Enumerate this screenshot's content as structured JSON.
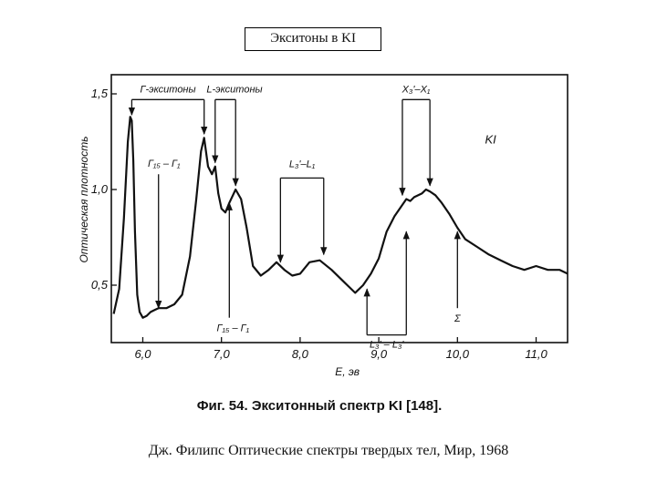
{
  "slide": {
    "title": "Экситоны в KI",
    "source": "Дж. Филипс Оптические спектры твердых тел, Мир, 1968"
  },
  "chart_data": {
    "type": "line",
    "figure_caption": "Фиг. 54. Экситонный спектр KI [148].",
    "xlabel": "E, эв",
    "ylabel": "Оптическая плотность",
    "series_label": "KI",
    "xlim": [
      5.6,
      11.4
    ],
    "ylim": [
      0.2,
      1.6
    ],
    "x_ticks": [
      6.0,
      7.0,
      8.0,
      9.0,
      10.0,
      11.0
    ],
    "x_tick_labels": [
      "6,0",
      "7,0",
      "8,0",
      "9,0",
      "10,0",
      "11,0"
    ],
    "y_ticks": [
      0.5,
      1.0,
      1.5
    ],
    "y_tick_labels": [
      "0,5",
      "1,0",
      "1,5"
    ],
    "series": [
      {
        "x": [
          5.63,
          5.7,
          5.76,
          5.81,
          5.84,
          5.86,
          5.88,
          5.9,
          5.93,
          5.96,
          6.0,
          6.05,
          6.1,
          6.15,
          6.2,
          6.3,
          6.4,
          6.5,
          6.6,
          6.68,
          6.74,
          6.78,
          6.83,
          6.88,
          6.92,
          6.96,
          7.0,
          7.05,
          7.1,
          7.18,
          7.25,
          7.32,
          7.4,
          7.5,
          7.6,
          7.7,
          7.8,
          7.9,
          8.0,
          8.12,
          8.25,
          8.4,
          8.55,
          8.7,
          8.8,
          8.9,
          9.0,
          9.1,
          9.2,
          9.3,
          9.35,
          9.4,
          9.45,
          9.55,
          9.6,
          9.65,
          9.72,
          9.8,
          9.9,
          10.0,
          10.1,
          10.25,
          10.4,
          10.55,
          10.7,
          10.85,
          11.0,
          11.15,
          11.3,
          11.4
        ],
        "y": [
          0.35,
          0.48,
          0.85,
          1.25,
          1.38,
          1.36,
          1.15,
          0.78,
          0.45,
          0.36,
          0.33,
          0.34,
          0.36,
          0.37,
          0.38,
          0.38,
          0.4,
          0.45,
          0.65,
          0.95,
          1.2,
          1.27,
          1.12,
          1.08,
          1.12,
          0.98,
          0.9,
          0.88,
          0.93,
          1.0,
          0.95,
          0.8,
          0.6,
          0.55,
          0.58,
          0.62,
          0.58,
          0.55,
          0.56,
          0.62,
          0.63,
          0.58,
          0.52,
          0.46,
          0.5,
          0.56,
          0.64,
          0.78,
          0.86,
          0.92,
          0.95,
          0.94,
          0.96,
          0.98,
          1.0,
          0.99,
          0.97,
          0.93,
          0.87,
          0.8,
          0.74,
          0.7,
          0.66,
          0.63,
          0.6,
          0.58,
          0.6,
          0.58,
          0.58,
          0.56
        ]
      }
    ],
    "annotations": [
      {
        "text": "Г-экситоны",
        "range": [
          5.86,
          6.78
        ]
      },
      {
        "text": "L-экситоны",
        "range": [
          6.92,
          7.18
        ]
      },
      {
        "text": "X₃'–X₁",
        "range": [
          9.3,
          9.65
        ]
      },
      {
        "text": "L₃'–L₁",
        "range": [
          7.75,
          8.3
        ]
      },
      {
        "text": "Г₁₅ – Г₁",
        "x": 6.2
      },
      {
        "text": "Г₁₅ – Г₁",
        "x": 7.1
      },
      {
        "text": "L₃' – L₃'",
        "range": [
          8.85,
          9.35
        ]
      },
      {
        "text": "Σ",
        "x": 10.0
      }
    ]
  }
}
